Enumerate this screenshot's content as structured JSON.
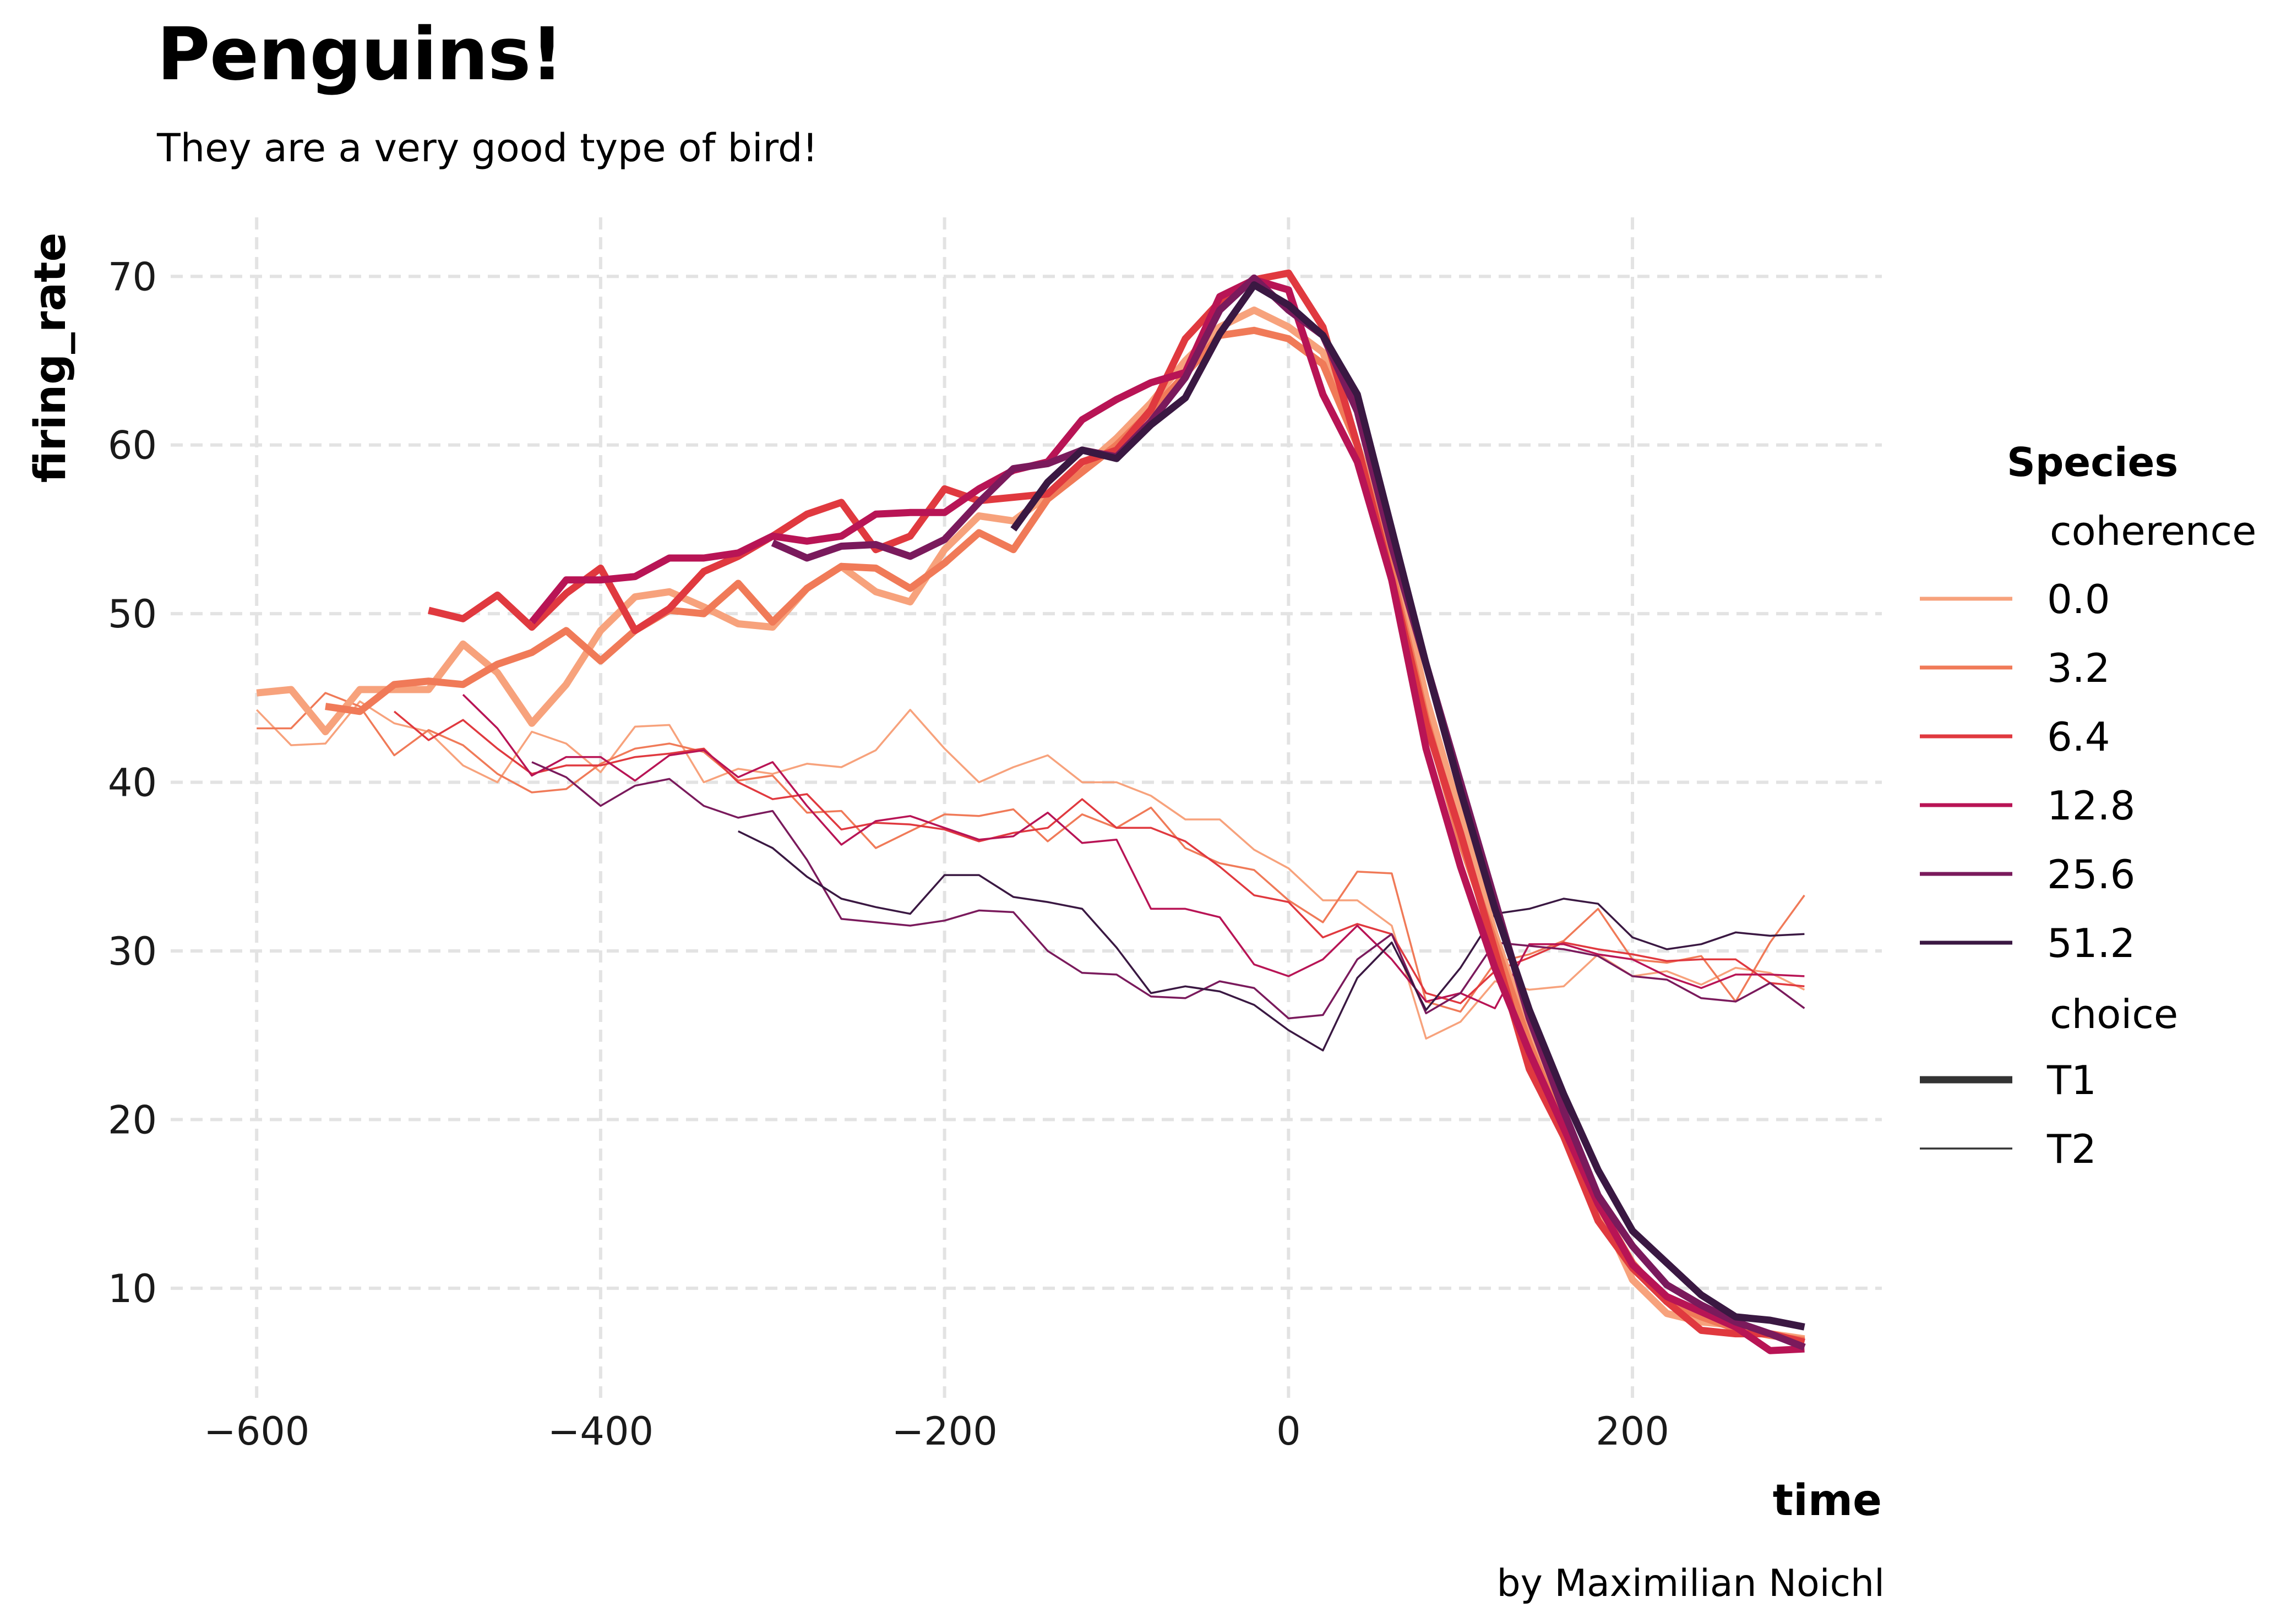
{
  "title": "Penguins!",
  "subtitle": "They are a very good type of bird!",
  "caption": "by Maximilian Noichl",
  "chart_data": {
    "type": "line",
    "xlabel": "time",
    "ylabel": "firing_rate",
    "xlim": [
      -650,
      345
    ],
    "ylim": [
      3.5,
      73.5
    ],
    "xticks": [
      -600,
      -400,
      -200,
      0,
      200
    ],
    "xtick_labels": [
      "−600",
      "−400",
      "−200",
      "0",
      "200"
    ],
    "yticks": [
      10,
      20,
      30,
      40,
      50,
      60,
      70
    ],
    "ytick_labels": [
      "10",
      "20",
      "30",
      "40",
      "50",
      "60",
      "70"
    ],
    "grid": true,
    "legend": {
      "title": "Species",
      "coherence_label": "coherence",
      "coherence_items": [
        {
          "label": "0.0",
          "color": "#f7a27c"
        },
        {
          "label": "3.2",
          "color": "#f07a58"
        },
        {
          "label": "6.4",
          "color": "#e0393f"
        },
        {
          "label": "12.8",
          "color": "#b81455"
        },
        {
          "label": "25.6",
          "color": "#7a1a5c"
        },
        {
          "label": "51.2",
          "color": "#3a1842"
        }
      ],
      "choice_label": "choice",
      "choice_items": [
        {
          "label": "T1",
          "style": "thick"
        },
        {
          "label": "T2",
          "style": "thin"
        }
      ],
      "placement": "right"
    },
    "series": [
      {
        "coherence": "0.0",
        "choice": "T1",
        "color": "#f7a27c",
        "x": [
          -600,
          -580,
          -560,
          -540,
          -520,
          -500,
          -480,
          -460,
          -440,
          -420,
          -400,
          -380,
          -360,
          -340,
          -320,
          -300,
          -280,
          -260,
          -240,
          -220,
          -200,
          -180,
          -160,
          -140,
          -120,
          -100,
          -80,
          -60,
          -40,
          -20,
          0,
          20,
          40,
          60,
          80,
          100,
          120,
          140,
          160,
          180,
          200,
          220,
          240,
          260,
          280,
          300
        ],
        "y": [
          45.3,
          45.5,
          43,
          45.5,
          45.5,
          45.5,
          48.2,
          46.5,
          43.5,
          45.8,
          49,
          51,
          51.3,
          50.4,
          49.4,
          49.2,
          51.5,
          52.8,
          51.3,
          50.7,
          53.8,
          55.8,
          55.5,
          57,
          58.6,
          60.4,
          62.5,
          65,
          67,
          68,
          67,
          65.5,
          60,
          54,
          45,
          38,
          31,
          25,
          20,
          15,
          10.5,
          8.5,
          8,
          7.8,
          7.3,
          7
        ]
      },
      {
        "coherence": "3.2",
        "choice": "T1",
        "color": "#f07a58",
        "x": [
          -560,
          -540,
          -520,
          -500,
          -480,
          -460,
          -440,
          -420,
          -400,
          -380,
          -360,
          -340,
          -320,
          -300,
          -280,
          -260,
          -240,
          -220,
          -200,
          -180,
          -160,
          -140,
          -120,
          -100,
          -80,
          -60,
          -40,
          -20,
          0,
          20,
          40,
          60,
          80,
          100,
          120,
          140,
          160,
          180,
          200,
          220,
          240,
          260,
          280,
          300
        ],
        "y": [
          44.5,
          44.2,
          45.8,
          46,
          45.8,
          47,
          47.7,
          49,
          47.2,
          49,
          50.2,
          50,
          51.8,
          49.5,
          51.5,
          52.8,
          52.7,
          51.5,
          53,
          54.8,
          53.8,
          56.8,
          58.4,
          60,
          62,
          64.2,
          66.5,
          66.8,
          66.3,
          64.8,
          60,
          52.5,
          43.8,
          36.5,
          30.5,
          24.5,
          19.5,
          15,
          11.5,
          9.2,
          8.3,
          7.6,
          7.2,
          6.9
        ]
      },
      {
        "coherence": "6.4",
        "choice": "T1",
        "color": "#e0393f",
        "x": [
          -500,
          -480,
          -460,
          -440,
          -420,
          -400,
          -380,
          -360,
          -340,
          -320,
          -300,
          -280,
          -260,
          -240,
          -220,
          -200,
          -180,
          -160,
          -140,
          -120,
          -100,
          -80,
          -60,
          -40,
          -20,
          0,
          20,
          40,
          60,
          80,
          100,
          120,
          140,
          160,
          180,
          200,
          220,
          240,
          260,
          280,
          300
        ],
        "y": [
          50.2,
          49.7,
          51.1,
          49.2,
          51.2,
          52.7,
          49,
          50.3,
          52.5,
          53.4,
          54.6,
          55.9,
          56.6,
          53.8,
          54.6,
          57.4,
          56.7,
          56.9,
          57.1,
          59,
          59.7,
          62.1,
          66.3,
          68.5,
          69.8,
          70.2,
          67,
          60,
          52,
          43.5,
          37,
          30,
          23,
          19,
          14,
          11.2,
          9.2,
          7.5,
          7.3,
          7.3,
          6.8
        ]
      },
      {
        "coherence": "12.8",
        "choice": "T1",
        "color": "#b81455",
        "x": [
          -440,
          -420,
          -400,
          -380,
          -360,
          -340,
          -320,
          -300,
          -280,
          -260,
          -240,
          -220,
          -200,
          -180,
          -160,
          -140,
          -120,
          -100,
          -80,
          -60,
          -40,
          -20,
          0,
          20,
          40,
          60,
          80,
          100,
          120,
          140,
          160,
          180,
          200,
          220,
          240,
          260,
          280,
          300
        ],
        "y": [
          49.5,
          52,
          52,
          52.2,
          53.3,
          53.3,
          53.6,
          54.6,
          54.3,
          54.6,
          55.9,
          56,
          56,
          57.4,
          58.5,
          59,
          61.5,
          62.7,
          63.7,
          64.3,
          68.8,
          69.8,
          69.2,
          63,
          59,
          52,
          42,
          35,
          29,
          24,
          19.5,
          15,
          11.4,
          9.5,
          8.6,
          7.7,
          6.3,
          6.4
        ]
      },
      {
        "coherence": "25.6",
        "choice": "T1",
        "color": "#7a1a5c",
        "x": [
          -300,
          -280,
          -260,
          -240,
          -220,
          -200,
          -180,
          -160,
          -140,
          -120,
          -100,
          -80,
          -60,
          -40,
          -20,
          0,
          20,
          40,
          60,
          80,
          100,
          120,
          140,
          160,
          180,
          200,
          220,
          240,
          260,
          280,
          300
        ],
        "y": [
          54.2,
          53.3,
          54,
          54.1,
          53.4,
          54.4,
          56.6,
          58.6,
          58.9,
          59.7,
          59.3,
          61.4,
          64,
          68,
          69.9,
          68,
          66.5,
          62,
          54,
          47,
          40,
          33,
          26,
          20.5,
          15.5,
          12.5,
          10.2,
          9,
          8,
          7.3,
          6.5
        ]
      },
      {
        "coherence": "51.2",
        "choice": "T1",
        "color": "#3a1842",
        "x": [
          -160,
          -140,
          -120,
          -100,
          -80,
          -60,
          -40,
          -20,
          0,
          20,
          40,
          60,
          80,
          100,
          120,
          140,
          160,
          180,
          200,
          220,
          240,
          260,
          280,
          300
        ],
        "y": [
          55,
          57.8,
          59.7,
          59.2,
          61.2,
          62.8,
          66.6,
          69.5,
          68.3,
          66.5,
          63,
          55,
          47,
          39.5,
          32.5,
          26.5,
          21.5,
          17,
          13.4,
          11.5,
          9.6,
          8.3,
          8.1,
          7.7
        ]
      },
      {
        "coherence": "0.0",
        "choice": "T2",
        "color": "#f7a27c",
        "x": [
          -600,
          -580,
          -560,
          -540,
          -520,
          -500,
          -480,
          -460,
          -440,
          -420,
          -400,
          -380,
          -360,
          -340,
          -320,
          -300,
          -280,
          -260,
          -240,
          -220,
          -200,
          -180,
          -160,
          -140,
          -120,
          -100,
          -80,
          -60,
          -40,
          -20,
          0,
          20,
          40,
          60,
          80,
          100,
          120,
          140,
          160,
          180,
          200,
          220,
          240,
          260,
          280,
          300
        ],
        "y": [
          44.3,
          42.2,
          42.3,
          44.8,
          43.5,
          43,
          41,
          40,
          43,
          42.3,
          40.6,
          43.3,
          43.4,
          40,
          40.8,
          40.5,
          41.1,
          40.9,
          41.9,
          44.3,
          42,
          40,
          40.9,
          41.6,
          40,
          40,
          39.2,
          37.8,
          37.8,
          36,
          34.9,
          33,
          33,
          31.5,
          24.8,
          25.8,
          28.2,
          27.7,
          27.9,
          29.8,
          28.5,
          28.8,
          28,
          29,
          28.7,
          27.7
        ]
      },
      {
        "coherence": "3.2",
        "choice": "T2",
        "color": "#f07a58",
        "x": [
          -600,
          -580,
          -560,
          -540,
          -520,
          -500,
          -480,
          -460,
          -440,
          -420,
          -400,
          -380,
          -360,
          -340,
          -320,
          -300,
          -280,
          -260,
          -240,
          -220,
          -200,
          -180,
          -160,
          -140,
          -120,
          -100,
          -80,
          -60,
          -40,
          -20,
          0,
          20,
          40,
          60,
          80,
          100,
          120,
          140,
          160,
          180,
          200,
          220,
          240,
          260,
          280,
          300
        ],
        "y": [
          43.2,
          43.2,
          45.3,
          44.5,
          41.6,
          43.1,
          42.2,
          40.5,
          39.4,
          39.6,
          41.1,
          42,
          42.3,
          41.8,
          40.1,
          40.4,
          38.2,
          38.3,
          36.1,
          37.1,
          38.1,
          38,
          38.4,
          36.5,
          38.1,
          37.3,
          38.5,
          36.1,
          35.2,
          34.8,
          33,
          31.7,
          34.7,
          34.6,
          27,
          26.4,
          29.3,
          29.8,
          30.6,
          32.5,
          29.5,
          29.3,
          29.7,
          27,
          30.5,
          33.3
        ]
      },
      {
        "coherence": "6.4",
        "choice": "T2",
        "color": "#e0393f",
        "x": [
          -520,
          -500,
          -480,
          -460,
          -440,
          -420,
          -400,
          -380,
          -360,
          -340,
          -320,
          -300,
          -280,
          -260,
          -240,
          -220,
          -200,
          -180,
          -160,
          -140,
          -120,
          -100,
          -80,
          -60,
          -40,
          -20,
          0,
          20,
          40,
          60,
          80,
          100,
          120,
          140,
          160,
          180,
          200,
          220,
          240,
          260,
          280,
          300
        ],
        "y": [
          44.2,
          42.5,
          43.7,
          42,
          40.5,
          41,
          41,
          41.5,
          41.7,
          42,
          40,
          39,
          39.3,
          37.2,
          37.6,
          37.5,
          37.2,
          36.5,
          37,
          37.3,
          39,
          37.3,
          37.3,
          36.5,
          35,
          33.3,
          32.9,
          30.8,
          31.6,
          31,
          27.5,
          26.9,
          28.8,
          29.6,
          30.5,
          30.1,
          29.8,
          29.4,
          29.5,
          29.5,
          28.1,
          27.9
        ]
      },
      {
        "coherence": "12.8",
        "choice": "T2",
        "color": "#b81455",
        "x": [
          -480,
          -460,
          -440,
          -420,
          -400,
          -380,
          -360,
          -340,
          -320,
          -300,
          -280,
          -260,
          -240,
          -220,
          -200,
          -180,
          -160,
          -140,
          -120,
          -100,
          -80,
          -60,
          -40,
          -20,
          0,
          20,
          40,
          60,
          80,
          100,
          120,
          140,
          160,
          180,
          200,
          220,
          240,
          260,
          280,
          300
        ],
        "y": [
          45.2,
          43.2,
          40.4,
          41.5,
          41.5,
          40.1,
          41.6,
          41.9,
          40.3,
          41.2,
          38.6,
          36.3,
          37.7,
          38,
          37.3,
          36.6,
          36.8,
          38.2,
          36.4,
          36.6,
          32.5,
          32.5,
          32,
          29.2,
          28.5,
          29.5,
          31.5,
          29.5,
          27,
          27.5,
          26.6,
          30.4,
          30.4,
          29.8,
          29.5,
          28.5,
          27.8,
          28.6,
          28.6,
          28.5
        ]
      },
      {
        "coherence": "25.6",
        "choice": "T2",
        "color": "#7a1a5c",
        "x": [
          -440,
          -420,
          -400,
          -380,
          -360,
          -340,
          -320,
          -300,
          -280,
          -260,
          -240,
          -220,
          -200,
          -180,
          -160,
          -140,
          -120,
          -100,
          -80,
          -60,
          -40,
          -20,
          0,
          20,
          40,
          60,
          80,
          100,
          120,
          140,
          160,
          180,
          200,
          220,
          240,
          260,
          280,
          300
        ],
        "y": [
          41.2,
          40.3,
          38.6,
          39.8,
          40.2,
          38.6,
          37.9,
          38.3,
          35.4,
          31.9,
          31.7,
          31.5,
          31.8,
          32.4,
          32.3,
          30,
          28.7,
          28.6,
          27.3,
          27.2,
          28.2,
          27.8,
          26,
          26.2,
          29.5,
          31,
          26.3,
          27.5,
          30.5,
          30.3,
          30.1,
          29.7,
          28.5,
          28.3,
          27.2,
          27,
          28.1,
          26.6
        ]
      },
      {
        "coherence": "51.2",
        "choice": "T2",
        "color": "#3a1842",
        "x": [
          -320,
          -300,
          -280,
          -260,
          -240,
          -220,
          -200,
          -180,
          -160,
          -140,
          -120,
          -100,
          -80,
          -60,
          -40,
          -20,
          0,
          20,
          40,
          60,
          80,
          100,
          120,
          140,
          160,
          180,
          200,
          220,
          240,
          260,
          280,
          300
        ],
        "y": [
          37.1,
          36.1,
          34.4,
          33.1,
          32.6,
          32.2,
          34.5,
          34.5,
          33.2,
          32.9,
          32.5,
          30.2,
          27.5,
          27.9,
          27.6,
          26.8,
          25.3,
          24.1,
          28.4,
          30.5,
          26.5,
          29,
          32.2,
          32.5,
          33.1,
          32.8,
          30.8,
          30.1,
          30.4,
          31.1,
          30.9,
          31
        ]
      }
    ]
  }
}
